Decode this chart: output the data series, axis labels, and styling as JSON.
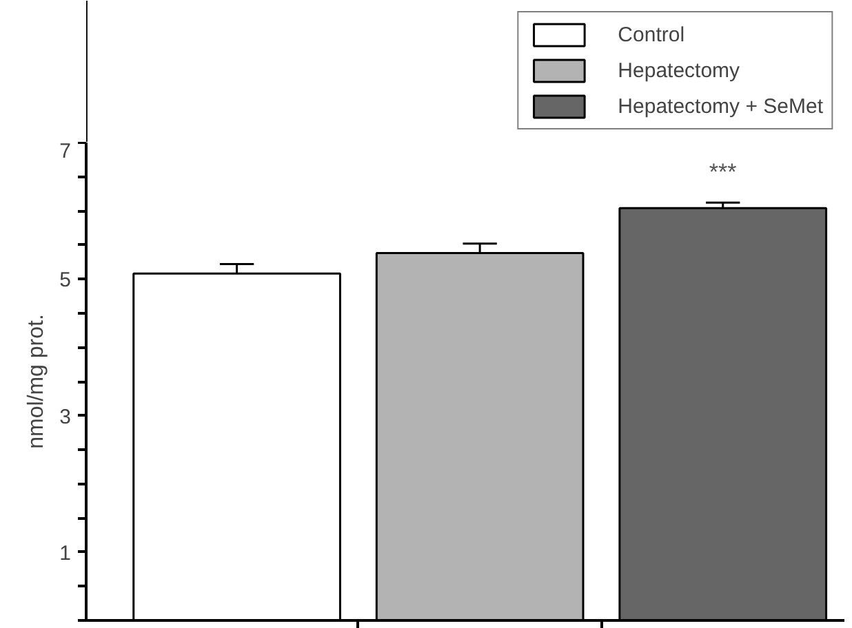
{
  "chart_data": {
    "type": "bar",
    "categories": [
      null
    ],
    "ylabel": "nmol/mg prot.",
    "series": [
      {
        "name": "Control",
        "color": "#ffffff",
        "values": [
          5.08
        ],
        "errors": [
          [
            5.08,
            5.22
          ]
        ]
      },
      {
        "name": "Hepatectomy",
        "color": "#b3b3b3",
        "values": [
          5.38
        ],
        "errors": [
          [
            5.38,
            5.52
          ]
        ]
      },
      {
        "name": "Hepatectomy + SeMet",
        "color": "#666666",
        "values": [
          6.04
        ],
        "errors": [
          [
            6.04,
            6.12
          ]
        ]
      }
    ],
    "annotations": [
      "***"
    ],
    "ylim": [
      0,
      7
    ],
    "yticks": [
      {
        "value": 0,
        "label": null
      },
      {
        "value": 0.5,
        "label": null
      },
      1,
      {
        "value": 1.5,
        "label": null
      },
      {
        "value": 2,
        "label": null
      },
      {
        "value": 2.5,
        "label": null
      },
      3,
      {
        "value": 3.5,
        "label": null
      },
      {
        "value": 4,
        "label": null
      },
      {
        "value": 4.5,
        "label": null
      },
      5,
      {
        "value": 5.5,
        "label": null
      },
      {
        "value": 6,
        "label": null
      },
      {
        "value": 6.5,
        "label": null
      },
      7
    ],
    "grid": false,
    "legend": "top right",
    "tick_labels": "y"
  }
}
